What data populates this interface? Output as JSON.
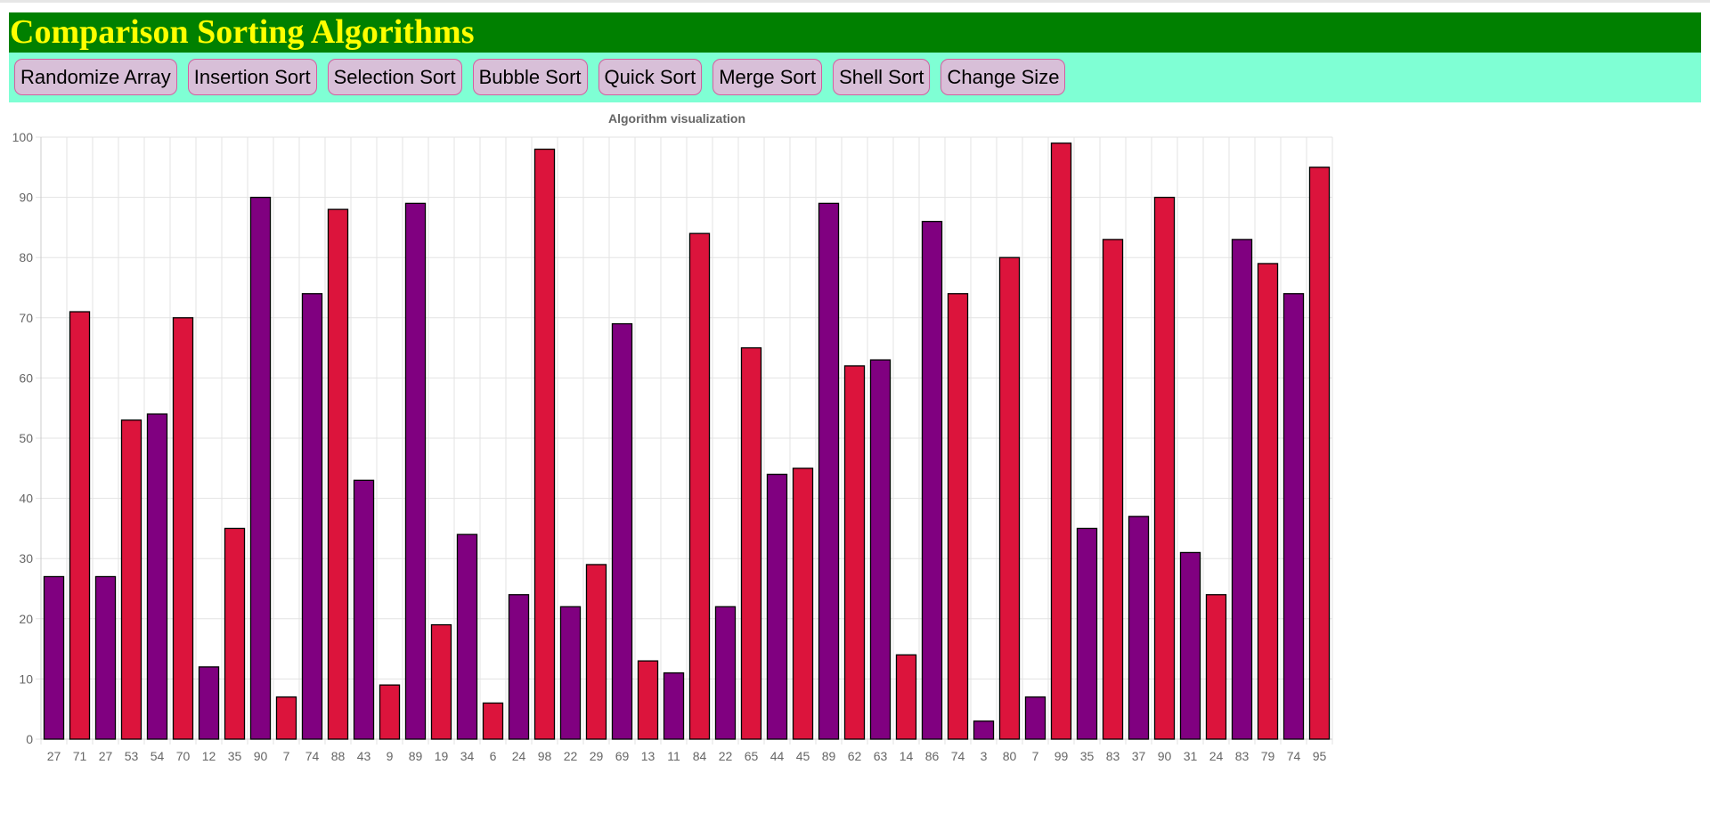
{
  "header": {
    "title": "Comparison Sorting Algorithms"
  },
  "toolbar": {
    "buttons": [
      {
        "label": "Randomize Array"
      },
      {
        "label": "Insertion Sort"
      },
      {
        "label": "Selection Sort"
      },
      {
        "label": "Bubble Sort"
      },
      {
        "label": "Quick Sort"
      },
      {
        "label": "Merge Sort"
      },
      {
        "label": "Shell Sort"
      },
      {
        "label": "Change Size"
      }
    ]
  },
  "colors": {
    "header_bg": "#008000",
    "header_text": "#ffff00",
    "toolbar_bg": "#7fffd4",
    "button_bg": "#d8bfd8",
    "bar_purple": "#800080",
    "bar_red": "#dc143c"
  },
  "chart_data": {
    "type": "bar",
    "title": "Algorithm visualization",
    "xlabel": "",
    "ylabel": "",
    "ylim": [
      0,
      100
    ],
    "yticks": [
      0,
      10,
      20,
      30,
      40,
      50,
      60,
      70,
      80,
      90,
      100
    ],
    "grid": true,
    "categories": [
      "27",
      "71",
      "27",
      "53",
      "54",
      "70",
      "12",
      "35",
      "90",
      "7",
      "74",
      "88",
      "43",
      "9",
      "89",
      "19",
      "34",
      "6",
      "24",
      "98",
      "22",
      "29",
      "69",
      "13",
      "11",
      "84",
      "22",
      "65",
      "44",
      "45",
      "89",
      "62",
      "63",
      "14",
      "86",
      "74",
      "3",
      "80",
      "7",
      "99",
      "35",
      "83",
      "37",
      "90",
      "31",
      "24",
      "83",
      "79",
      "74",
      "95"
    ],
    "values": [
      27,
      71,
      27,
      53,
      54,
      70,
      12,
      35,
      90,
      7,
      74,
      88,
      43,
      9,
      89,
      19,
      34,
      6,
      24,
      98,
      22,
      29,
      69,
      13,
      11,
      84,
      22,
      65,
      44,
      45,
      89,
      62,
      63,
      14,
      86,
      74,
      3,
      80,
      7,
      99,
      35,
      83,
      37,
      90,
      31,
      24,
      83,
      79,
      74,
      95
    ],
    "bar_colors": [
      "purple",
      "red",
      "purple",
      "red",
      "purple",
      "red",
      "purple",
      "red",
      "purple",
      "red",
      "purple",
      "red",
      "purple",
      "red",
      "purple",
      "red",
      "purple",
      "red",
      "purple",
      "red",
      "purple",
      "red",
      "purple",
      "red",
      "purple",
      "red",
      "purple",
      "red",
      "purple",
      "red",
      "purple",
      "red",
      "purple",
      "red",
      "purple",
      "red",
      "purple",
      "red",
      "purple",
      "red",
      "purple",
      "red",
      "purple",
      "red",
      "purple",
      "red",
      "purple",
      "red",
      "purple",
      "red"
    ]
  }
}
